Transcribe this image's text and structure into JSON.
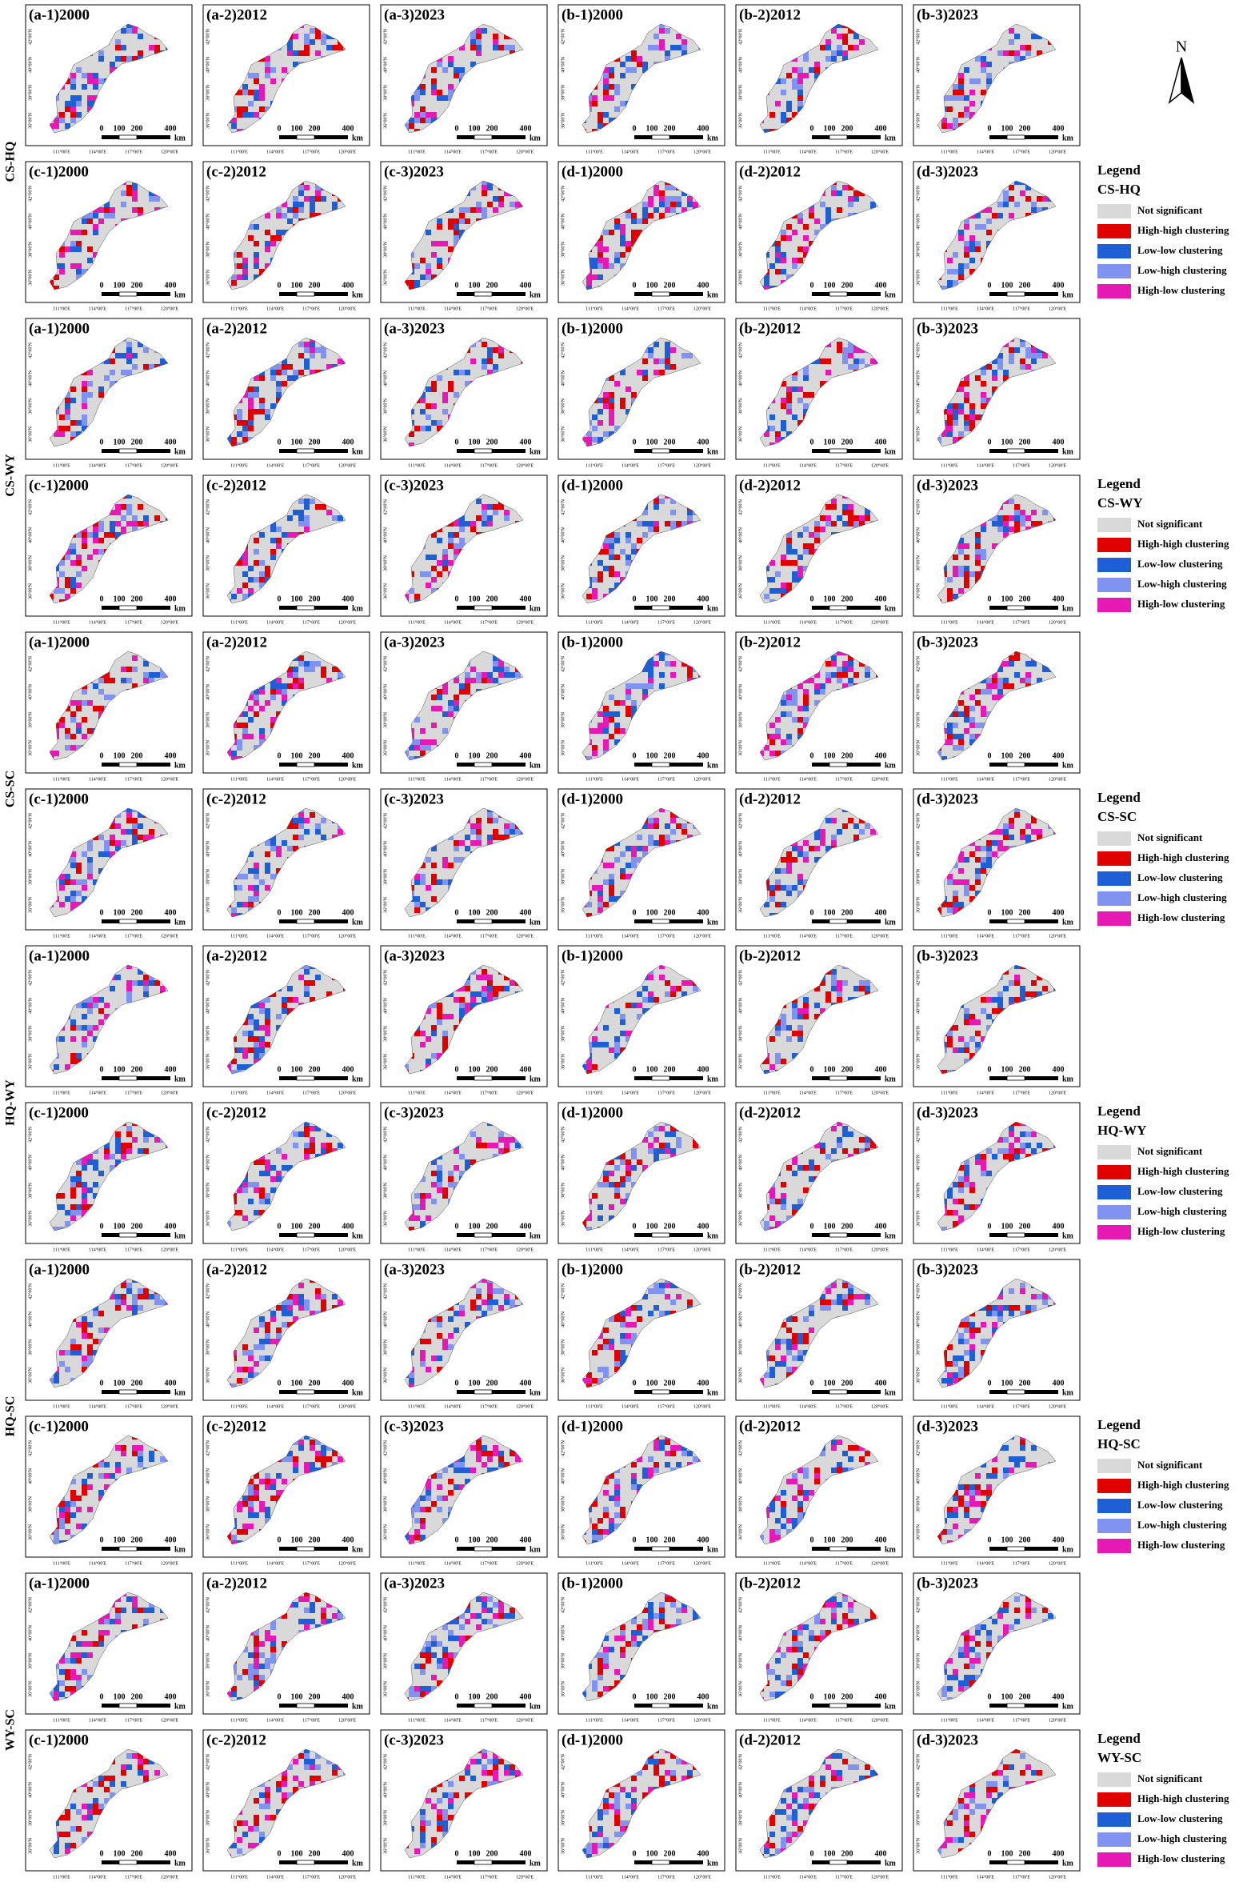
{
  "north": "N",
  "lon_ticks": [
    "111°00'E",
    "114°00'E",
    "117°00'E",
    "120°00'E"
  ],
  "lat_ticks": [
    "42°00'N",
    "40°00'N",
    "38°00'N",
    "36°00'N"
  ],
  "scale_bar": [
    "0",
    "100",
    "200",
    "400",
    "km"
  ],
  "groups": [
    {
      "name": "CS-HQ",
      "panels": [
        "(a-1)2000",
        "(a-2)2012",
        "(a-3)2023",
        "(b-1)2000",
        "(b-2)2012",
        "(b-3)2023",
        "(c-1)2000",
        "(c-2)2012",
        "(c-3)2023",
        "(d-1)2000",
        "(d-2)2012",
        "(d-3)2023"
      ]
    },
    {
      "name": "CS-WY",
      "panels": [
        "(a-1)2000",
        "(a-2)2012",
        "(a-3)2023",
        "(b-1)2000",
        "(b-2)2012",
        "(b-3)2023",
        "(c-1)2000",
        "(c-2)2012",
        "(c-3)2023",
        "(d-1)2000",
        "(d-2)2012",
        "(d-3)2023"
      ]
    },
    {
      "name": "CS-SC",
      "panels": [
        "(a-1)2000",
        "(a-2)2012",
        "(a-3)2023",
        "(b-1)2000",
        "(b-2)2012",
        "(b-3)2023",
        "(c-1)2000",
        "(c-2)2012",
        "(c-3)2023",
        "(d-1)2000",
        "(d-2)2012",
        "(d-3)2023"
      ]
    },
    {
      "name": "HQ-WY",
      "panels": [
        "(a-1)2000",
        "(a-2)2012",
        "(a-3)2023",
        "(b-1)2000",
        "(b-2)2012",
        "(b-3)2023",
        "(c-1)2000",
        "(c-2)2012",
        "(c-3)2023",
        "(d-1)2000",
        "(d-2)2012",
        "(d-3)2023"
      ]
    },
    {
      "name": "HQ-SC",
      "panels": [
        "(a-1)2000",
        "(a-2)2012",
        "(a-3)2023",
        "(b-1)2000",
        "(b-2)2012",
        "(b-3)2023",
        "(c-1)2000",
        "(c-2)2012",
        "(c-3)2023",
        "(d-1)2000",
        "(d-2)2012",
        "(d-3)2023"
      ]
    },
    {
      "name": "WY-SC",
      "panels": [
        "(a-1)2000",
        "(a-2)2012",
        "(a-3)2023",
        "(b-1)2000",
        "(b-2)2012",
        "(b-3)2023",
        "(c-1)2000",
        "(c-2)2012",
        "(c-3)2023",
        "(d-1)2000",
        "(d-2)2012",
        "(d-3)2023"
      ]
    }
  ],
  "legend": {
    "title": "Legend",
    "classes": [
      {
        "name": "Not significant",
        "color": "#d9d9d9"
      },
      {
        "name": "High-high clustering",
        "color": "#e00000"
      },
      {
        "name": "Low-low clustering",
        "color": "#1f5fd6"
      },
      {
        "name": "Low-high clustering",
        "color": "#8093f0"
      },
      {
        "name": "High-low clustering",
        "color": "#e619b5"
      }
    ]
  }
}
